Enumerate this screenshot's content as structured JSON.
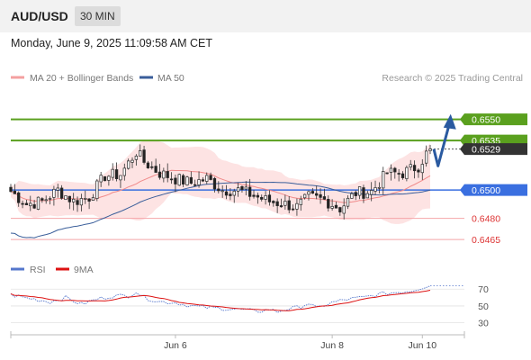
{
  "header": {
    "symbol": "AUD/USD",
    "timeframe": "30 MIN"
  },
  "datetime": "Monday, June 9, 2025 11:09:58 AM CET",
  "legend": {
    "ma20_bb": "MA 20 + Bollinger Bands",
    "ma50": "MA 50",
    "credit": "Research © 2025 Trading Central"
  },
  "rsi_legend": {
    "rsi": "RSI",
    "ma9": "9MA"
  },
  "colors": {
    "resistance": "#5aa01e",
    "support": "#f4a4a8",
    "pivot": "#3a6fe0",
    "bb_fill": "#fde3e3",
    "ma20": "#f08a8a",
    "ma50": "#3a5e9a",
    "rsi": "#5577cc",
    "rsi_ma": "#dd1111",
    "arrow": "#2a5aa0",
    "price_tag": "#333333"
  },
  "chart_data": [
    {
      "type": "candlestick",
      "title": "AUD/USD 30 MIN",
      "price_levels": [
        {
          "value": 0.655,
          "label": "0.6550",
          "kind": "resistance"
        },
        {
          "value": 0.6535,
          "label": "0.6535",
          "kind": "resistance"
        },
        {
          "value": 0.6529,
          "label": "0.6529",
          "kind": "current"
        },
        {
          "value": 0.65,
          "label": "0.6500",
          "kind": "pivot"
        },
        {
          "value": 0.648,
          "label": "0.6480",
          "kind": "support"
        },
        {
          "value": 0.6465,
          "label": "0.6465",
          "kind": "support"
        }
      ],
      "ylim": [
        0.6453,
        0.6572
      ],
      "x_ticks": [
        {
          "label": "Jun 6",
          "index": 42
        },
        {
          "label": "Jun 8",
          "index": 82
        },
        {
          "label": "Jun 10",
          "index": 105
        }
      ],
      "num_bars": 108,
      "close_anchors": [
        [
          0,
          0.6499
        ],
        [
          4,
          0.649
        ],
        [
          8,
          0.6492
        ],
        [
          12,
          0.65
        ],
        [
          16,
          0.6492
        ],
        [
          20,
          0.6495
        ],
        [
          24,
          0.651
        ],
        [
          28,
          0.6511
        ],
        [
          32,
          0.6527
        ],
        [
          34,
          0.652
        ],
        [
          38,
          0.6512
        ],
        [
          42,
          0.6508
        ],
        [
          46,
          0.6505
        ],
        [
          50,
          0.6508
        ],
        [
          54,
          0.65
        ],
        [
          58,
          0.65
        ],
        [
          62,
          0.6496
        ],
        [
          66,
          0.6492
        ],
        [
          70,
          0.649
        ],
        [
          73,
          0.6488
        ],
        [
          76,
          0.6495
        ],
        [
          80,
          0.6493
        ],
        [
          84,
          0.6487
        ],
        [
          88,
          0.6498
        ],
        [
          92,
          0.6499
        ],
        [
          96,
          0.6512
        ],
        [
          100,
          0.6512
        ],
        [
          104,
          0.6517
        ],
        [
          107,
          0.653
        ]
      ],
      "forecast_path": [
        [
          107,
          0.6529
        ],
        [
          109,
          0.6517
        ],
        [
          112,
          0.6548
        ]
      ]
    },
    {
      "type": "line",
      "title": "RSI",
      "series": [
        {
          "name": "RSI"
        },
        {
          "name": "9MA"
        }
      ],
      "ylim": [
        20,
        82
      ],
      "y_ticks": [
        70,
        50,
        30
      ],
      "rsi_anchors": [
        [
          0,
          63
        ],
        [
          6,
          58
        ],
        [
          10,
          55
        ],
        [
          14,
          60
        ],
        [
          18,
          52
        ],
        [
          22,
          58
        ],
        [
          26,
          62
        ],
        [
          30,
          62
        ],
        [
          32,
          67
        ],
        [
          34,
          60
        ],
        [
          38,
          55
        ],
        [
          42,
          54
        ],
        [
          46,
          50
        ],
        [
          50,
          48
        ],
        [
          54,
          47
        ],
        [
          58,
          46
        ],
        [
          62,
          44
        ],
        [
          64,
          44
        ],
        [
          66,
          46
        ],
        [
          68,
          43
        ],
        [
          70,
          46
        ],
        [
          73,
          48
        ],
        [
          76,
          53
        ],
        [
          78,
          47
        ],
        [
          80,
          51
        ],
        [
          82,
          54
        ],
        [
          86,
          58
        ],
        [
          90,
          60
        ],
        [
          94,
          64
        ],
        [
          98,
          66
        ],
        [
          102,
          68
        ],
        [
          105,
          72
        ],
        [
          107,
          75
        ]
      ]
    }
  ]
}
